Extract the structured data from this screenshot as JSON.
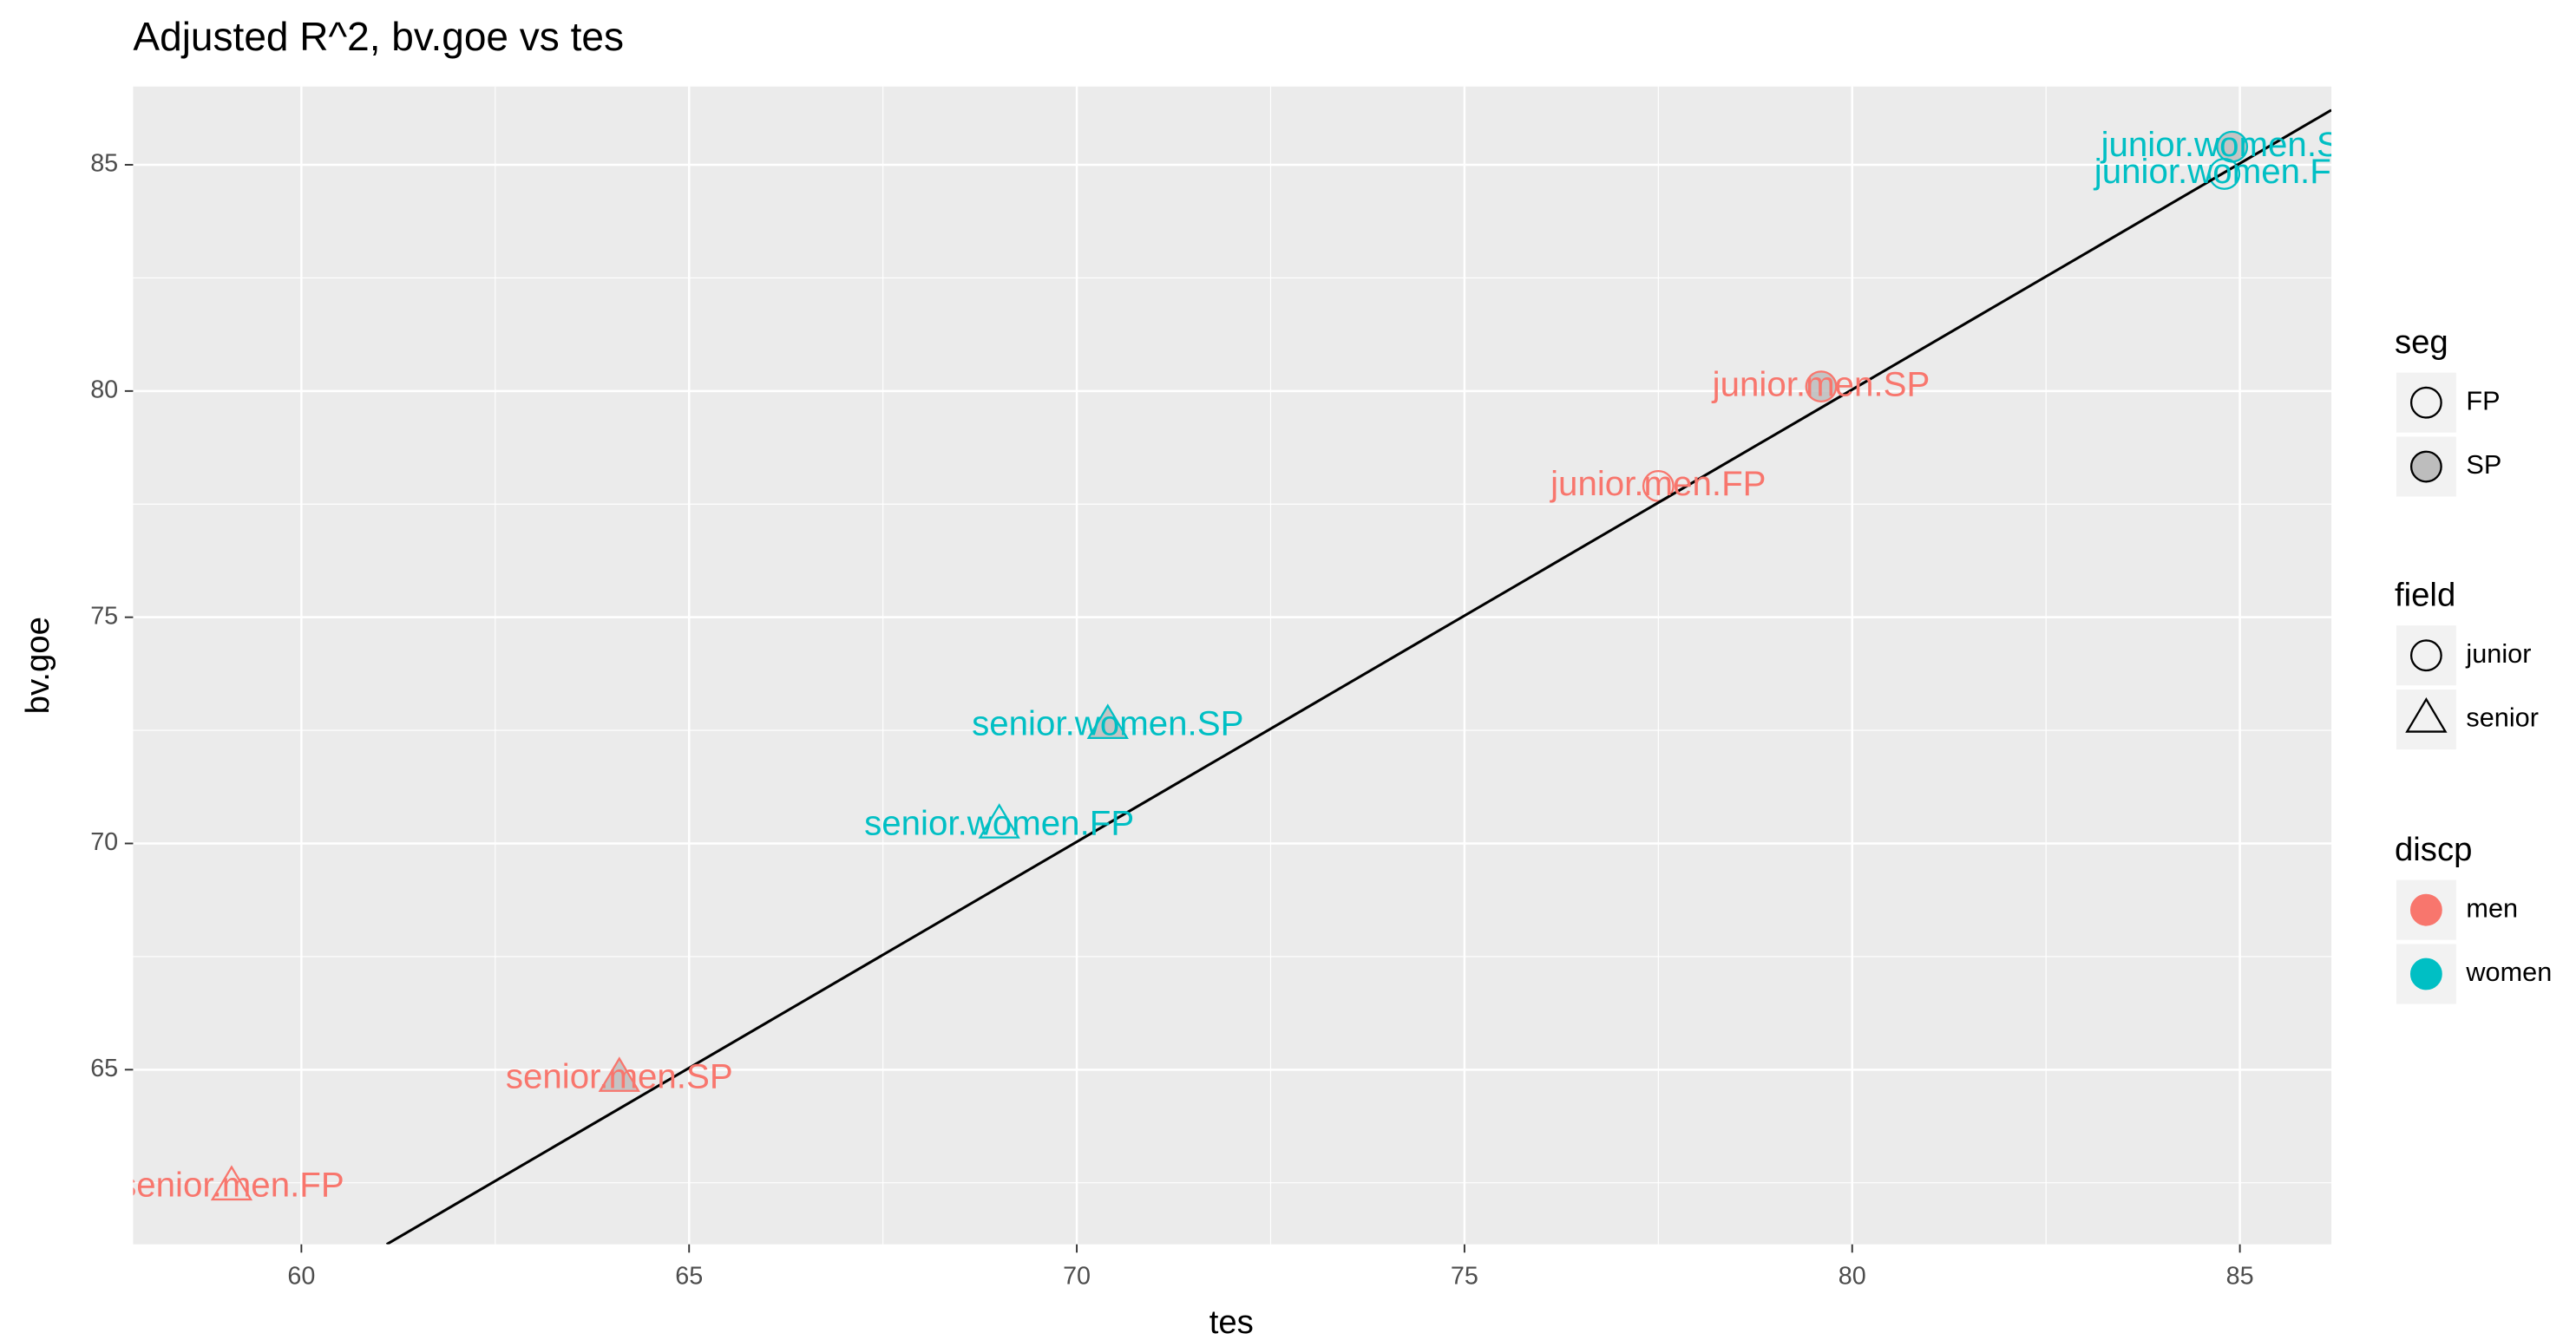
{
  "chart_data": {
    "type": "scatter",
    "title": "Adjusted R^2, bv.goe vs tes",
    "x_label": "tes",
    "y_label": "bv.goe",
    "xlim": [
      57.83,
      86.18
    ],
    "ylim": [
      61.14,
      86.73
    ],
    "xticks": [
      60,
      65,
      70,
      75,
      80,
      85
    ],
    "yticks": [
      65,
      70,
      75,
      80,
      85
    ],
    "xminor": [
      62.5,
      67.5,
      72.5,
      77.5,
      82.5
    ],
    "yminor": [
      62.5,
      67.5,
      72.5,
      77.5,
      82.5
    ],
    "grid": true,
    "points": [
      {
        "label": "junior.women.SP",
        "x": 84.9,
        "y": 85.4,
        "seg": "SP",
        "field": "junior",
        "discp": "women"
      },
      {
        "label": "junior.women.FP",
        "x": 84.8,
        "y": 84.8,
        "seg": "FP",
        "field": "junior",
        "discp": "women"
      },
      {
        "label": "junior.men.SP",
        "x": 79.6,
        "y": 80.1,
        "seg": "SP",
        "field": "junior",
        "discp": "men"
      },
      {
        "label": "junior.men.FP",
        "x": 77.5,
        "y": 77.9,
        "seg": "FP",
        "field": "junior",
        "discp": "men"
      },
      {
        "label": "senior.women.SP",
        "x": 70.4,
        "y": 72.6,
        "seg": "SP",
        "field": "senior",
        "discp": "women"
      },
      {
        "label": "senior.women.FP",
        "x": 69.0,
        "y": 70.4,
        "seg": "FP",
        "field": "senior",
        "discp": "women"
      },
      {
        "label": "senior.men.SP",
        "x": 64.1,
        "y": 64.8,
        "seg": "SP",
        "field": "senior",
        "discp": "men"
      },
      {
        "label": "senior.men.FP",
        "x": 59.1,
        "y": 62.4,
        "seg": "FP",
        "field": "senior",
        "discp": "men"
      }
    ],
    "fit_line": {
      "x": [
        61.1,
        86.18
      ],
      "y": [
        61.14,
        86.21
      ],
      "color": "#000000"
    },
    "legend": {
      "seg": {
        "title": "seg",
        "entries": [
          "FP",
          "SP"
        ],
        "fills": [
          "none",
          "#bdbdbd"
        ]
      },
      "field": {
        "title": "field",
        "entries": [
          "junior",
          "senior"
        ],
        "shapes": [
          "circle",
          "triangle"
        ]
      },
      "discp": {
        "title": "discp",
        "entries": [
          "men",
          "women"
        ],
        "colors": [
          "#F8766D",
          "#00BFC4"
        ]
      }
    }
  }
}
